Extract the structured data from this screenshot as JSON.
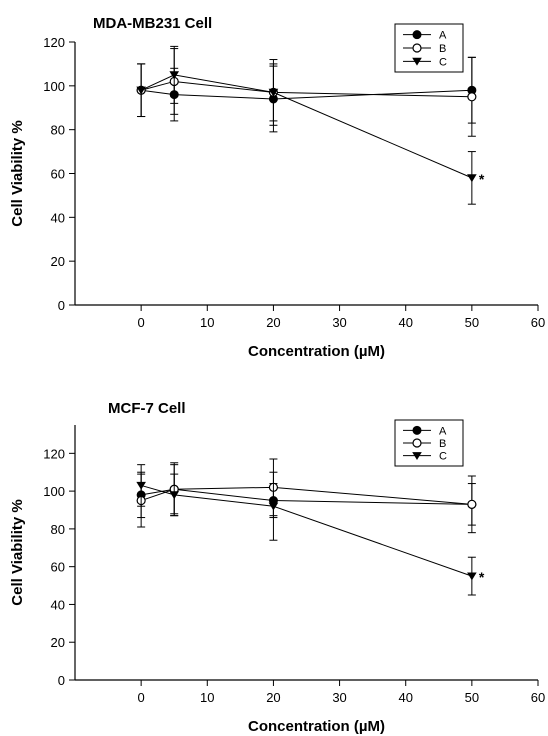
{
  "chart_data": [
    {
      "type": "line",
      "title": "MDA-MB231 Cell",
      "xlabel": "Concentration (µM)",
      "ylabel": "Cell Viability %",
      "xlim": [
        -10,
        60
      ],
      "ylim": [
        0,
        120
      ],
      "xticks": [
        0,
        10,
        20,
        30,
        40,
        50,
        60
      ],
      "yticks": [
        0,
        20,
        40,
        60,
        80,
        100,
        120
      ],
      "legend_position": "top-right",
      "x": [
        0,
        5,
        20,
        50
      ],
      "series": [
        {
          "name": "A",
          "marker": "filled-circle",
          "values": [
            98,
            96,
            94,
            98
          ],
          "errors": [
            12,
            12,
            15,
            15
          ]
        },
        {
          "name": "B",
          "marker": "open-circle",
          "values": [
            98,
            102,
            97,
            95
          ],
          "errors": [
            12,
            15,
            15,
            18
          ]
        },
        {
          "name": "C",
          "marker": "filled-triangle-down",
          "values": [
            98,
            105,
            97,
            58
          ],
          "errors": [
            12,
            13,
            13,
            12
          ]
        }
      ],
      "annotation": {
        "text": "*",
        "x": 50,
        "y": 58
      }
    },
    {
      "type": "line",
      "title": "MCF-7 Cell",
      "xlabel": "Concentration (µM)",
      "ylabel": "Cell Viability %",
      "xlim": [
        -10,
        60
      ],
      "ylim": [
        0,
        135
      ],
      "xticks": [
        0,
        10,
        20,
        30,
        40,
        50,
        60
      ],
      "yticks": [
        0,
        20,
        40,
        60,
        80,
        100,
        120
      ],
      "legend_position": "top-right",
      "x": [
        0,
        5,
        20,
        50
      ],
      "series": [
        {
          "name": "A",
          "marker": "filled-circle",
          "values": [
            98,
            101,
            95,
            93
          ],
          "errors": [
            12,
            13,
            9,
            11
          ]
        },
        {
          "name": "B",
          "marker": "open-circle",
          "values": [
            95,
            101,
            102,
            93
          ],
          "errors": [
            14,
            14,
            15,
            15
          ]
        },
        {
          "name": "C",
          "marker": "filled-triangle-down",
          "values": [
            103,
            98,
            92,
            55
          ],
          "errors": [
            11,
            11,
            18,
            10
          ]
        }
      ],
      "annotation": {
        "text": "*",
        "x": 50,
        "y": 55
      }
    }
  ]
}
